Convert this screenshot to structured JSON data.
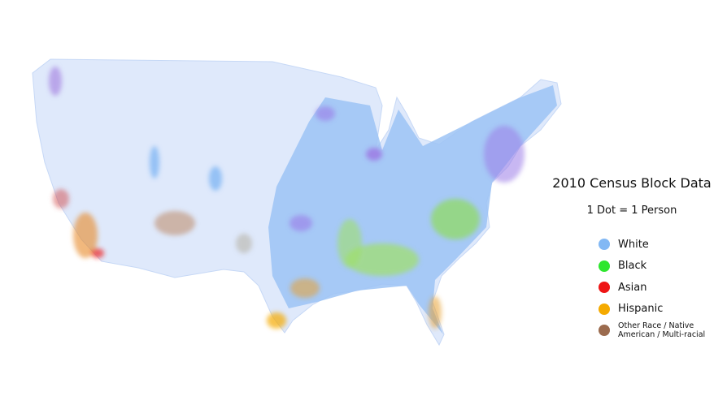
{
  "title": "2010 Census Block Data",
  "subtitle": "1 Dot = 1 Person",
  "legend": [
    {
      "label": "White",
      "color": "#82b8f4"
    },
    {
      "label": "Black",
      "color": "#2ee62e"
    },
    {
      "label": "Asian",
      "color": "#ee1515"
    },
    {
      "label": "Hispanic",
      "color": "#f5aa00"
    },
    {
      "label": "Other Race / Native American / Multi-racial",
      "color": "#9b6b4e"
    }
  ]
}
